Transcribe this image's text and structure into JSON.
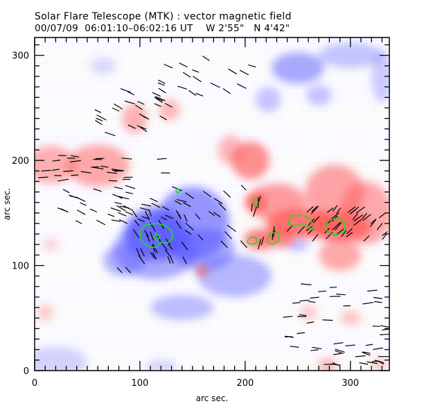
{
  "header": {
    "title": "Solar Flare Telescope (MTK) : vector magnetic field",
    "date": "00/07/09",
    "time_range": "06:01:10–06:02:16 UT",
    "position_w": "W 2'55\"",
    "position_n": "N 4'42\""
  },
  "chart_data": {
    "type": "heatmap",
    "title": "Solar Flare Telescope (MTK) : vector magnetic field",
    "subtitle": "00/07/09  06:01:10–06:02:16 UT    W 2'55\"   N 4'42\"",
    "xlabel": "arc sec.",
    "ylabel": "arc sec.",
    "xlim": [
      0,
      337
    ],
    "ylim": [
      0,
      317
    ],
    "x_ticks": [
      0,
      100,
      200,
      300
    ],
    "y_ticks": [
      0,
      100,
      200,
      300
    ],
    "minor_tick_step": 10,
    "colors": {
      "positive_polarity": "#ff5a5a",
      "negative_polarity": "#5a5aff",
      "contour": "#22dd22",
      "vector": "#000000"
    },
    "positive_regions": [
      {
        "x": 15,
        "y": 196,
        "rx": 24,
        "ry": 18,
        "strength": 0.55
      },
      {
        "x": 60,
        "y": 195,
        "rx": 30,
        "ry": 20,
        "strength": 0.6
      },
      {
        "x": 95,
        "y": 240,
        "rx": 12,
        "ry": 14,
        "strength": 0.55
      },
      {
        "x": 128,
        "y": 248,
        "rx": 10,
        "ry": 10,
        "strength": 0.5
      },
      {
        "x": 186,
        "y": 210,
        "rx": 12,
        "ry": 14,
        "strength": 0.5
      },
      {
        "x": 205,
        "y": 200,
        "rx": 18,
        "ry": 18,
        "strength": 0.8
      },
      {
        "x": 230,
        "y": 160,
        "rx": 28,
        "ry": 18,
        "strength": 0.7
      },
      {
        "x": 210,
        "y": 160,
        "rx": 10,
        "ry": 10,
        "strength": 0.95
      },
      {
        "x": 285,
        "y": 170,
        "rx": 28,
        "ry": 26,
        "strength": 0.65
      },
      {
        "x": 315,
        "y": 150,
        "rx": 25,
        "ry": 30,
        "strength": 0.6
      },
      {
        "x": 255,
        "y": 140,
        "rx": 35,
        "ry": 14,
        "strength": 0.95
      },
      {
        "x": 290,
        "y": 137,
        "rx": 30,
        "ry": 14,
        "strength": 0.95
      },
      {
        "x": 215,
        "y": 125,
        "rx": 16,
        "ry": 10,
        "strength": 0.9
      },
      {
        "x": 235,
        "y": 127,
        "rx": 12,
        "ry": 10,
        "strength": 0.85
      },
      {
        "x": 290,
        "y": 110,
        "rx": 20,
        "ry": 15,
        "strength": 0.6
      },
      {
        "x": 159,
        "y": 95,
        "rx": 5,
        "ry": 5,
        "strength": 0.95
      },
      {
        "x": 260,
        "y": 55,
        "rx": 8,
        "ry": 8,
        "strength": 0.35
      },
      {
        "x": 300,
        "y": 50,
        "rx": 10,
        "ry": 7,
        "strength": 0.4
      },
      {
        "x": 278,
        "y": 4,
        "rx": 9,
        "ry": 9,
        "strength": 0.45
      },
      {
        "x": 328,
        "y": 6,
        "rx": 7,
        "ry": 7,
        "strength": 0.4
      },
      {
        "x": 10,
        "y": 55,
        "rx": 8,
        "ry": 8,
        "strength": 0.35
      },
      {
        "x": 15,
        "y": 120,
        "rx": 8,
        "ry": 6,
        "strength": 0.3
      }
    ],
    "negative_regions": [
      {
        "x": 115,
        "y": 130,
        "rx": 30,
        "ry": 25,
        "strength": 0.95
      },
      {
        "x": 150,
        "y": 140,
        "rx": 35,
        "ry": 35,
        "strength": 0.75
      },
      {
        "x": 115,
        "y": 115,
        "rx": 40,
        "ry": 28,
        "strength": 0.6
      },
      {
        "x": 85,
        "y": 105,
        "rx": 20,
        "ry": 15,
        "strength": 0.55
      },
      {
        "x": 160,
        "y": 115,
        "rx": 30,
        "ry": 20,
        "strength": 0.6
      },
      {
        "x": 190,
        "y": 90,
        "rx": 35,
        "ry": 20,
        "strength": 0.5
      },
      {
        "x": 140,
        "y": 60,
        "rx": 30,
        "ry": 12,
        "strength": 0.45
      },
      {
        "x": 250,
        "y": 120,
        "rx": 10,
        "ry": 6,
        "strength": 0.45
      },
      {
        "x": 250,
        "y": 288,
        "rx": 25,
        "ry": 15,
        "strength": 0.6
      },
      {
        "x": 300,
        "y": 300,
        "rx": 30,
        "ry": 12,
        "strength": 0.4
      },
      {
        "x": 222,
        "y": 258,
        "rx": 12,
        "ry": 12,
        "strength": 0.4
      },
      {
        "x": 270,
        "y": 262,
        "rx": 12,
        "ry": 10,
        "strength": 0.4
      },
      {
        "x": 330,
        "y": 280,
        "rx": 10,
        "ry": 25,
        "strength": 0.35
      },
      {
        "x": 65,
        "y": 290,
        "rx": 12,
        "ry": 8,
        "strength": 0.25
      },
      {
        "x": 20,
        "y": 8,
        "rx": 30,
        "ry": 15,
        "strength": 0.3
      },
      {
        "x": 120,
        "y": 4,
        "rx": 15,
        "ry": 6,
        "strength": 0.3
      }
    ],
    "contours": [
      {
        "points": [
          [
            100,
            133
          ],
          [
            106,
            139
          ],
          [
            117,
            140
          ],
          [
            124,
            138
          ],
          [
            130,
            133
          ],
          [
            131,
            126
          ],
          [
            126,
            121
          ],
          [
            120,
            122
          ],
          [
            115,
            117
          ],
          [
            108,
            118
          ],
          [
            101,
            124
          ],
          [
            100,
            133
          ]
        ]
      },
      {
        "points": [
          [
            113,
            127
          ],
          [
            116,
            130
          ],
          [
            119,
            127
          ],
          [
            116,
            124
          ],
          [
            113,
            127
          ]
        ]
      },
      {
        "points": [
          [
            134,
            171
          ],
          [
            136,
            173
          ],
          [
            138,
            171
          ],
          [
            136,
            169
          ],
          [
            134,
            171
          ]
        ]
      },
      {
        "points": [
          [
            207,
            160
          ],
          [
            209,
            163
          ],
          [
            212,
            161
          ],
          [
            211,
            157
          ],
          [
            208,
            157
          ],
          [
            207,
            160
          ]
        ]
      },
      {
        "points": [
          [
            202,
            123
          ],
          [
            205,
            127
          ],
          [
            210,
            127
          ],
          [
            212,
            122
          ],
          [
            208,
            120
          ],
          [
            203,
            121
          ],
          [
            202,
            123
          ]
        ]
      },
      {
        "points": [
          [
            221,
            125
          ],
          [
            224,
            131
          ],
          [
            232,
            131
          ],
          [
            232,
            124
          ],
          [
            226,
            120
          ],
          [
            221,
            122
          ],
          [
            221,
            125
          ]
        ]
      },
      {
        "points": [
          [
            241,
            140
          ],
          [
            243,
            147
          ],
          [
            253,
            148
          ],
          [
            259,
            146
          ],
          [
            263,
            141
          ],
          [
            264,
            134
          ],
          [
            260,
            136
          ],
          [
            256,
            140
          ],
          [
            245,
            137
          ],
          [
            241,
            140
          ]
        ]
      },
      {
        "points": [
          [
            276,
            136
          ],
          [
            279,
            143
          ],
          [
            289,
            145
          ],
          [
            295,
            141
          ],
          [
            294,
            132
          ],
          [
            286,
            129
          ],
          [
            279,
            131
          ],
          [
            276,
            136
          ]
        ]
      }
    ],
    "vector_field_note": "Transverse field vectors (short black line segments)"
  }
}
